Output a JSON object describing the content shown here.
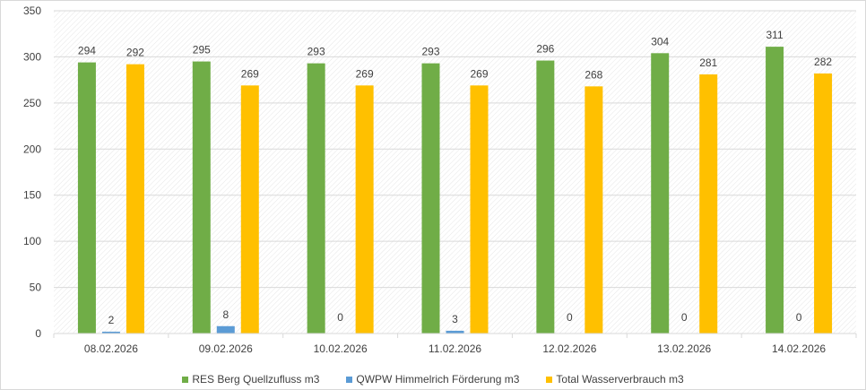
{
  "chart_data": {
    "type": "bar",
    "title": "",
    "xlabel": "",
    "ylabel": "",
    "ylim": [
      0,
      350
    ],
    "yticks": [
      0,
      50,
      100,
      150,
      200,
      250,
      300,
      350
    ],
    "categories": [
      "08.02.2026",
      "09.02.2026",
      "10.02.2026",
      "11.02.2026",
      "12.02.2026",
      "13.02.2026",
      "14.02.2026"
    ],
    "series": [
      {
        "name": "RES Berg Quellzufluss m3",
        "color": "#70ad47",
        "values": [
          294,
          295,
          293,
          293,
          296,
          304,
          311
        ]
      },
      {
        "name": "QWPW Himmelrich Förderung m3",
        "color": "#5b9bd5",
        "values": [
          2,
          8,
          0,
          3,
          0,
          0,
          0
        ]
      },
      {
        "name": "Total Wasserverbrauch m3",
        "color": "#ffc000",
        "values": [
          292,
          269,
          269,
          269,
          268,
          281,
          282
        ]
      }
    ],
    "grid": true,
    "legend_position": "bottom",
    "data_labels": true
  }
}
